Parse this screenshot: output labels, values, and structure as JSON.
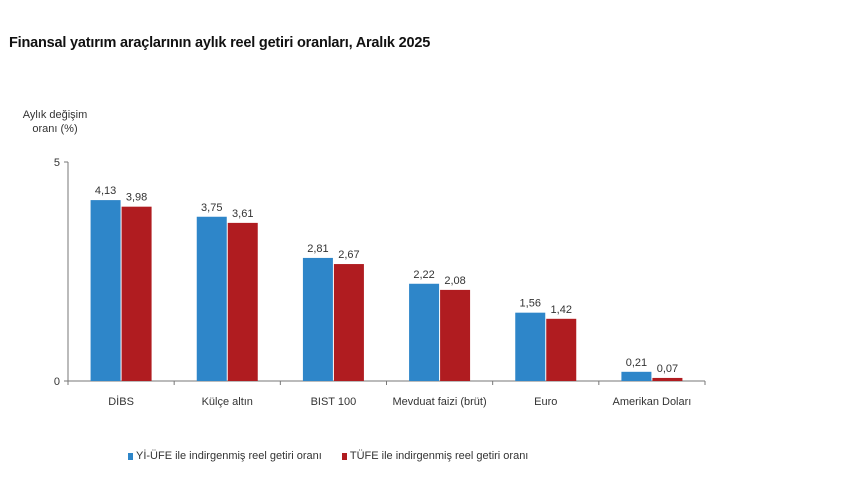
{
  "chart_data": {
    "type": "bar",
    "title": "Finansal yatırım araçlarının aylık reel getiri oranları, Aralık 2025",
    "ylabel": "Aylık değişim oranı (%)",
    "xlabel": "",
    "ylim": [
      0,
      5
    ],
    "yticks": [
      "0",
      "5"
    ],
    "grid": false,
    "legend_position": "bottom",
    "categories": [
      "DİBS",
      "Külçe altın",
      "BIST 100",
      "Mevduat faizi (brüt)",
      "Euro",
      "Amerikan Doları"
    ],
    "series": [
      {
        "name": "Yİ-ÜFE ile indirgenmiş reel getiri oranı",
        "color": "#2e86c9",
        "values": [
          4.13,
          3.75,
          2.81,
          2.22,
          1.56,
          0.21
        ],
        "labels": [
          "4,13",
          "3,75",
          "2,81",
          "2,22",
          "1,56",
          "0,21"
        ]
      },
      {
        "name": "TÜFE ile indirgenmiş reel getiri oranı",
        "color": "#b01c20",
        "values": [
          3.98,
          3.61,
          2.67,
          2.08,
          1.42,
          0.07
        ],
        "labels": [
          "3,98",
          "3,61",
          "2,67",
          "2,08",
          "1,42",
          "0,07"
        ]
      }
    ]
  }
}
